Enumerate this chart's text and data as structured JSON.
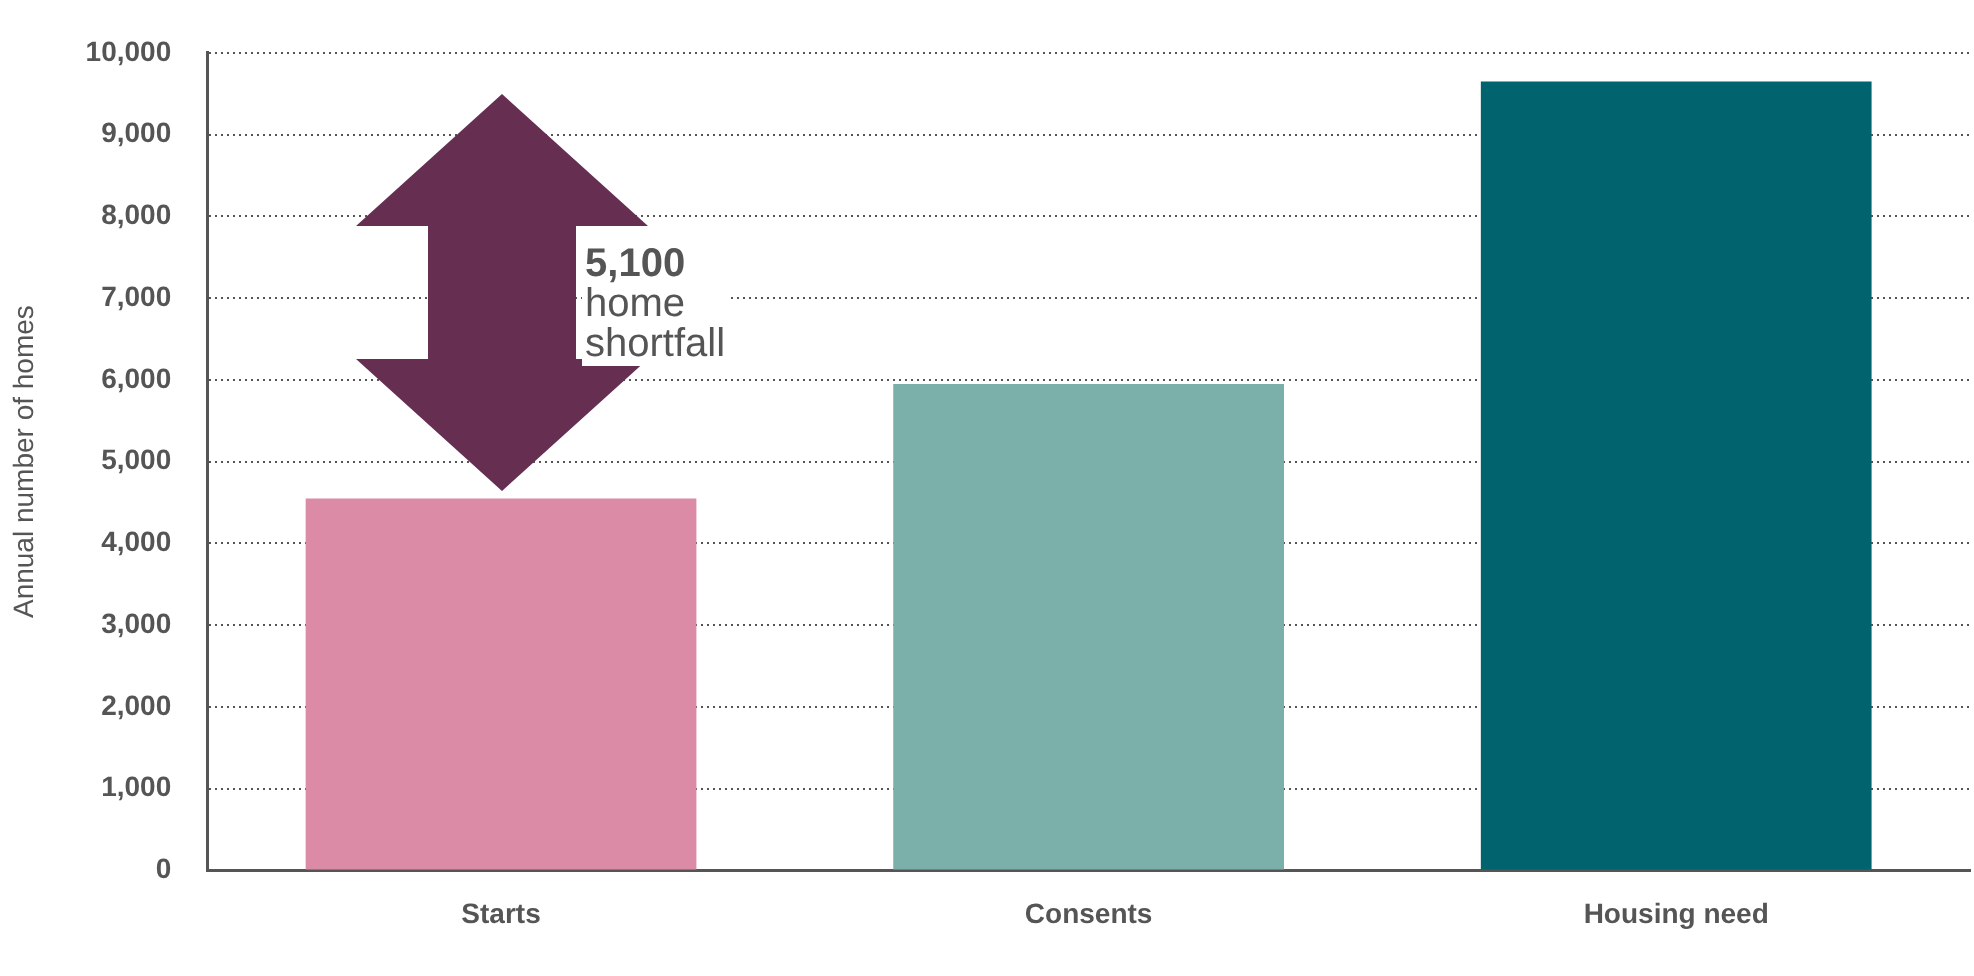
{
  "chart_data": {
    "type": "bar",
    "ylabel": "Annual number of homes",
    "categories": [
      "Starts",
      "Consents",
      "Housing need"
    ],
    "values": [
      4550,
      5950,
      9650
    ],
    "colors": [
      "#db8ba6",
      "#7aafaa",
      "#00636d"
    ],
    "ylim": [
      0,
      10000
    ],
    "yticks": [
      0,
      {
        "value": 1000,
        "label": "1,000"
      },
      {
        "value": 2000,
        "label": "2,000"
      },
      {
        "value": 3000,
        "label": "3,000"
      },
      {
        "value": 4000,
        "label": "4,000"
      },
      {
        "value": 5000,
        "label": "5,000"
      },
      {
        "value": 6000,
        "label": "6,000"
      },
      {
        "value": 7000,
        "label": "7,000"
      },
      {
        "value": 8000,
        "label": "8,000"
      },
      {
        "value": 9000,
        "label": "9,000"
      },
      {
        "value": 10000,
        "label": "10,000"
      }
    ],
    "grid": "y",
    "legend": false,
    "annotations": [
      "5,100 home shortfall"
    ]
  }
}
